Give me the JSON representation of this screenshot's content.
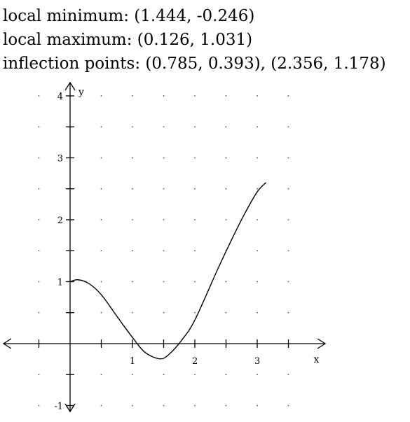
{
  "annotations": {
    "local_minimum": "local minimum: (1.444, -0.246)",
    "local_maximum": "local maximum: (0.126, 1.031)",
    "inflection_points": "inflection points: (0.785, 0.393), (2.356, 1.178)"
  },
  "chart_data": {
    "type": "line",
    "title": "",
    "xlabel": "x",
    "ylabel": "y",
    "xlim": [
      -1,
      4
    ],
    "ylim": [
      -1,
      5
    ],
    "x_ticks": [
      1,
      2,
      3
    ],
    "y_ticks": [
      -1,
      1,
      2,
      3,
      4
    ],
    "grid": "dotted",
    "series": [
      {
        "x": [
          0,
          0.126,
          0.3,
          0.5,
          0.785,
          1.0,
          1.2,
          1.444,
          1.6,
          1.8,
          2.0,
          2.356,
          2.6,
          2.8,
          3.0,
          3.14
        ],
        "y": [
          1.0,
          1.031,
          0.97,
          0.79,
          0.393,
          0.1,
          -0.14,
          -0.246,
          -0.16,
          0.07,
          0.38,
          1.178,
          1.7,
          2.1,
          2.45,
          2.6
        ]
      }
    ]
  }
}
